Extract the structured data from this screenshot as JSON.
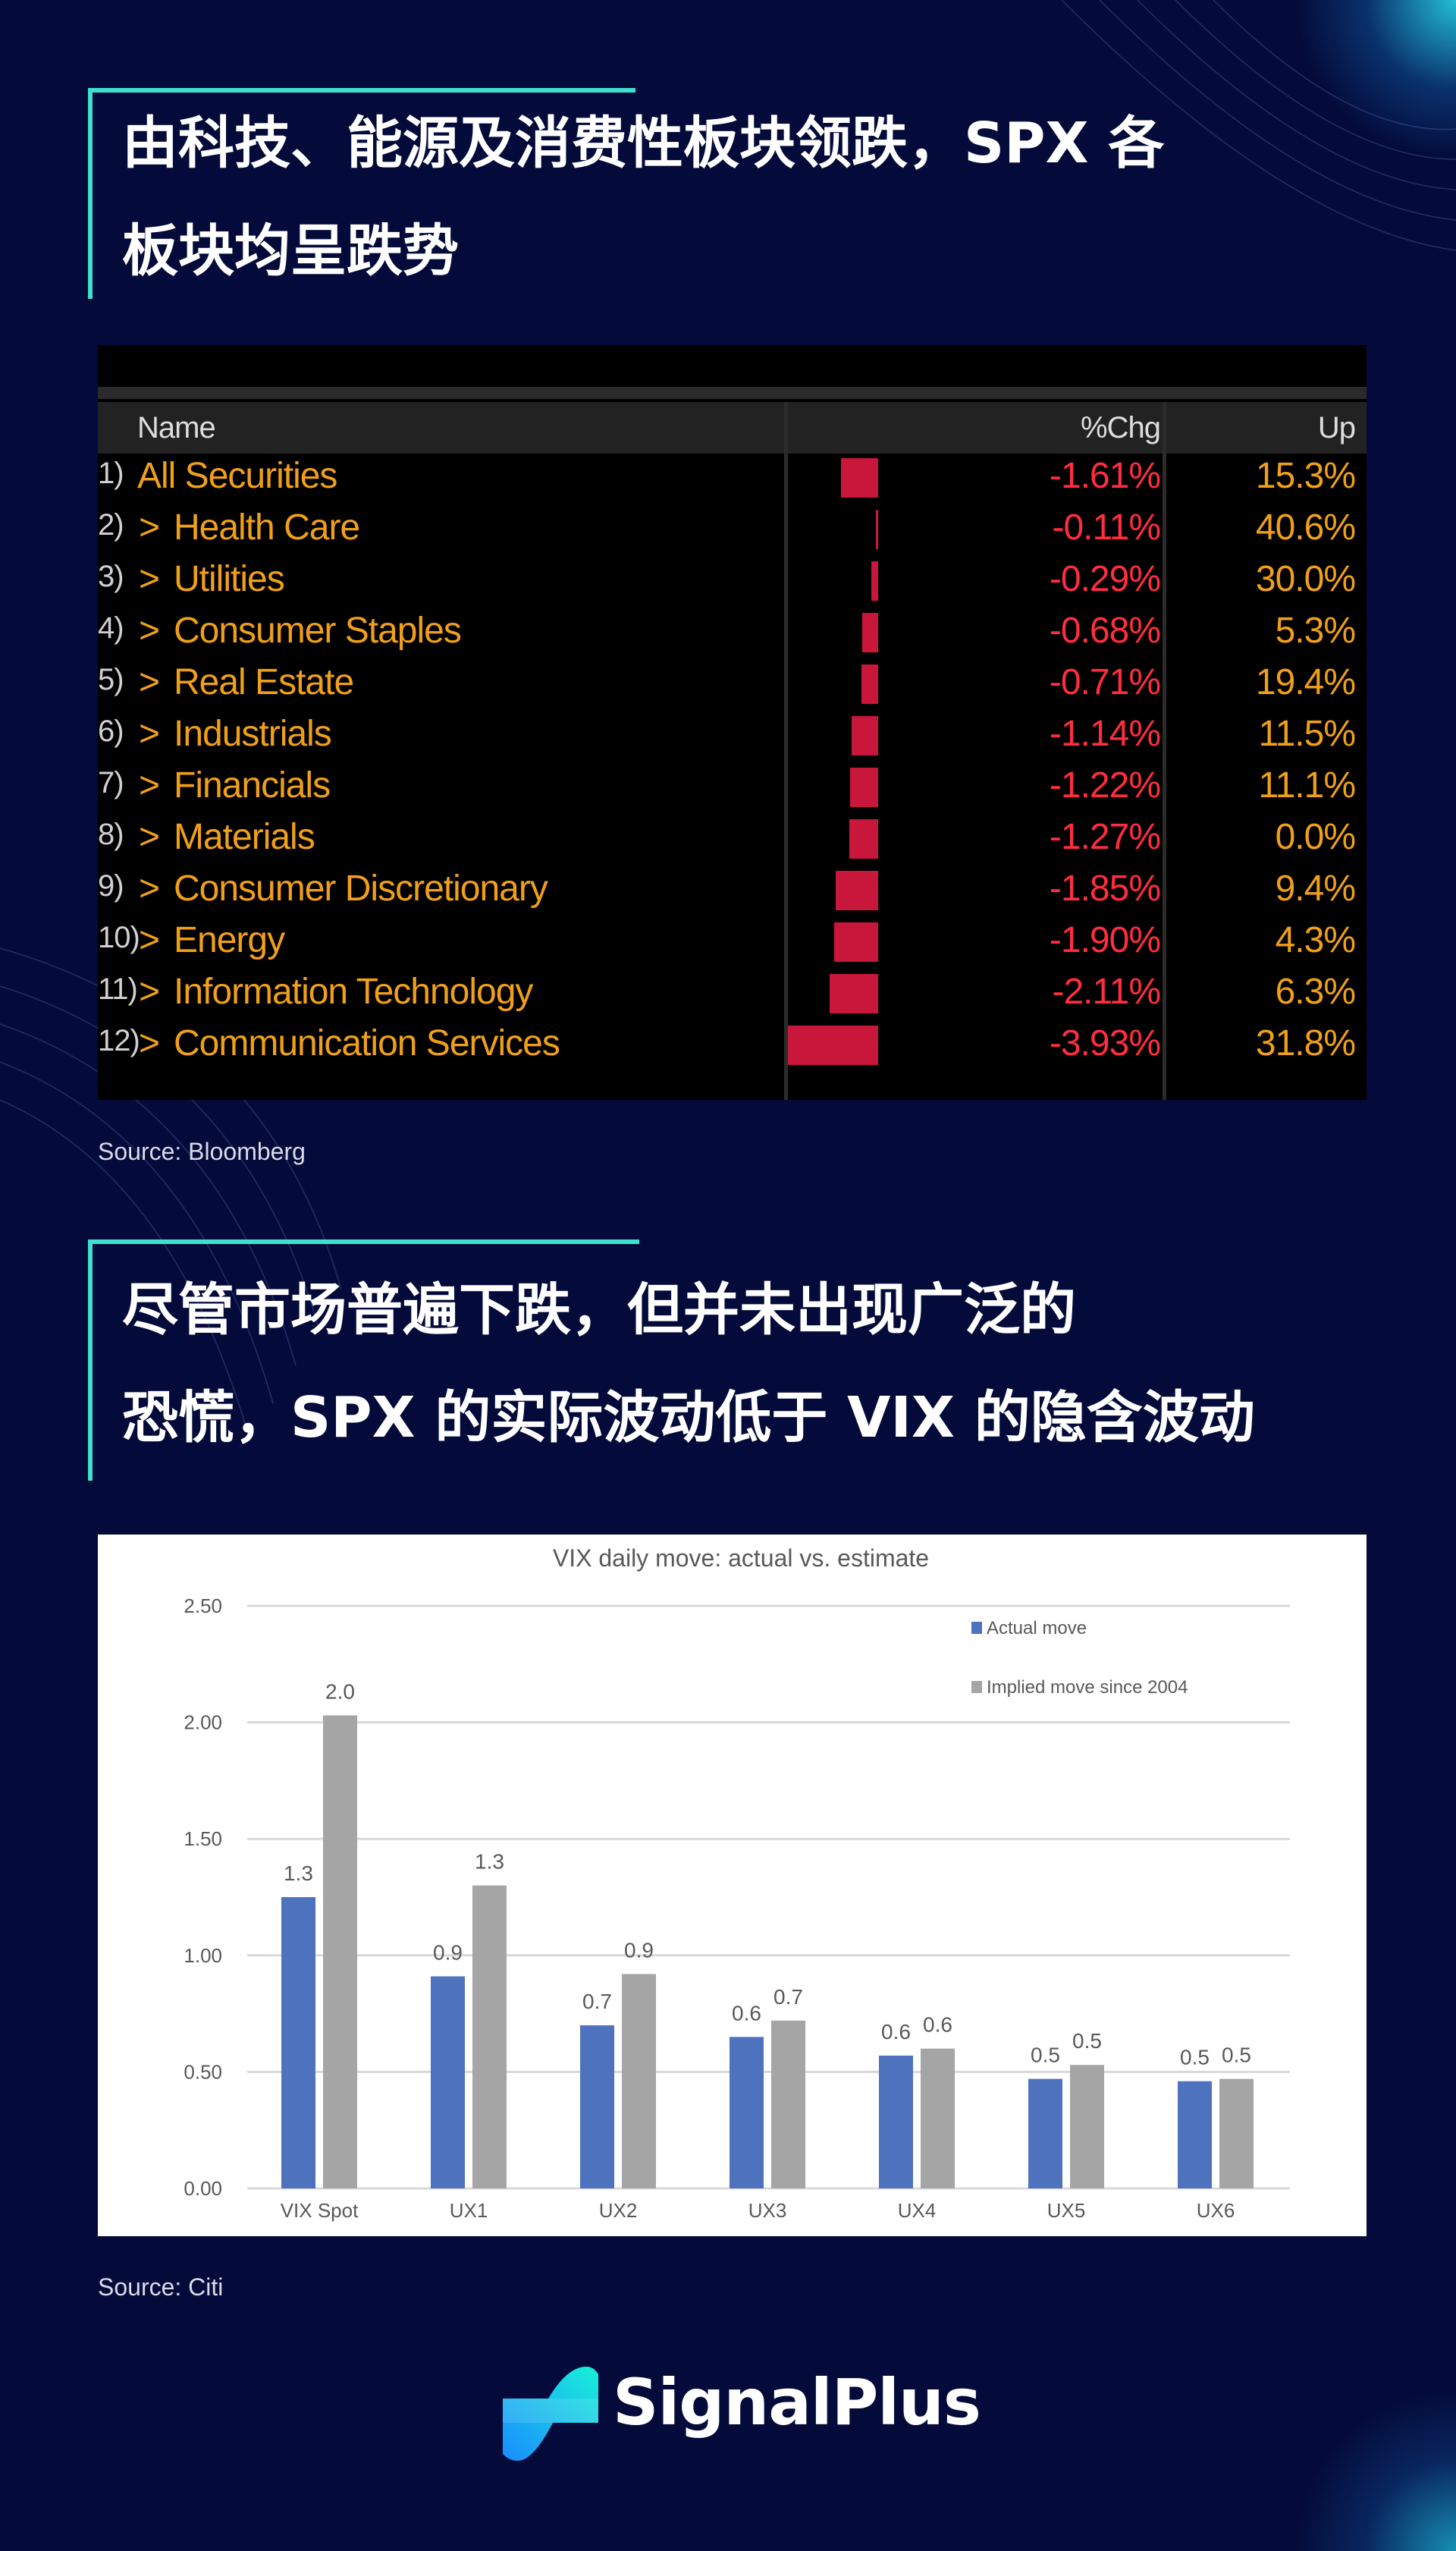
{
  "section1": {
    "title_lines": [
      "由科技、能源及消费性板块领跌，SPX 各",
      "板块均呈跌势"
    ],
    "table": {
      "headers": {
        "name": "Name",
        "pct": "%Chg",
        "up": "Up"
      },
      "rows": [
        {
          "num": "1)",
          "name": "All Securities",
          "chevron": false,
          "pct_label": "-1.61%",
          "pct": -1.61,
          "up": "15.3%"
        },
        {
          "num": "2)",
          "name": "Health Care",
          "chevron": true,
          "pct_label": "-0.11%",
          "pct": -0.11,
          "up": "40.6%"
        },
        {
          "num": "3)",
          "name": "Utilities",
          "chevron": true,
          "pct_label": "-0.29%",
          "pct": -0.29,
          "up": "30.0%"
        },
        {
          "num": "4)",
          "name": "Consumer Staples",
          "chevron": true,
          "pct_label": "-0.68%",
          "pct": -0.68,
          "up": "5.3%"
        },
        {
          "num": "5)",
          "name": "Real Estate",
          "chevron": true,
          "pct_label": "-0.71%",
          "pct": -0.71,
          "up": "19.4%"
        },
        {
          "num": "6)",
          "name": "Industrials",
          "chevron": true,
          "pct_label": "-1.14%",
          "pct": -1.14,
          "up": "11.5%"
        },
        {
          "num": "7)",
          "name": "Financials",
          "chevron": true,
          "pct_label": "-1.22%",
          "pct": -1.22,
          "up": "11.1%"
        },
        {
          "num": "8)",
          "name": "Materials",
          "chevron": true,
          "pct_label": "-1.27%",
          "pct": -1.27,
          "up": "0.0%"
        },
        {
          "num": "9)",
          "name": "Consumer Discretionary",
          "chevron": true,
          "pct_label": "-1.85%",
          "pct": -1.85,
          "up": "9.4%"
        },
        {
          "num": "10)",
          "name": "Energy",
          "chevron": true,
          "pct_label": "-1.90%",
          "pct": -1.9,
          "up": "4.3%"
        },
        {
          "num": "11)",
          "name": "Information Technology",
          "chevron": true,
          "pct_label": "-2.11%",
          "pct": -2.11,
          "up": "6.3%"
        },
        {
          "num": "12)",
          "name": "Communication Services",
          "chevron": true,
          "pct_label": "-3.93%",
          "pct": -3.93,
          "up": "31.8%"
        }
      ],
      "chevron_glyph": ">"
    },
    "source": "Source: Bloomberg"
  },
  "section2": {
    "title_lines": [
      "尽管市场普遍下跌，但并未出现广泛的",
      "恐慌，SPX 的实际波动低于 VIX 的隐含波动"
    ],
    "source": "Source: Citi"
  },
  "chart_data": {
    "type": "bar",
    "title": "VIX daily move: actual vs. estimate",
    "categories": [
      "VIX Spot",
      "UX1",
      "UX2",
      "UX3",
      "UX4",
      "UX5",
      "UX6"
    ],
    "series": [
      {
        "name": "Actual move",
        "color": "#4f72be",
        "values": [
          1.25,
          0.91,
          0.7,
          0.65,
          0.57,
          0.47,
          0.46
        ],
        "labels": [
          "1.3",
          "0.9",
          "0.7",
          "0.6",
          "0.6",
          "0.5",
          "0.5"
        ]
      },
      {
        "name": "Implied move since 2004",
        "color": "#a5a5a5",
        "values": [
          2.03,
          1.3,
          0.92,
          0.72,
          0.6,
          0.53,
          0.47
        ],
        "labels": [
          "2.0",
          "1.3",
          "0.9",
          "0.7",
          "0.6",
          "0.5",
          "0.5"
        ]
      }
    ],
    "yticks": [
      "0.00",
      "0.50",
      "1.00",
      "1.50",
      "2.00",
      "2.50"
    ],
    "ylim": [
      0,
      2.5
    ],
    "grid": true,
    "legend": "top-right",
    "xlabel": "",
    "ylabel": ""
  },
  "brand": {
    "name": "SignalPlus"
  },
  "colors": {
    "background": "#040b3a",
    "accent": "#3fe0d0",
    "negative": "#ff2d3d",
    "bloomberg_text": "#f0a018"
  }
}
